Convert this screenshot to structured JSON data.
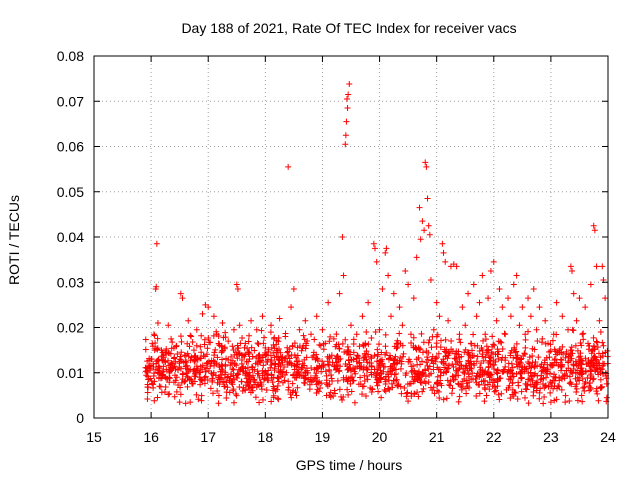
{
  "chart_data": {
    "type": "scatter",
    "title": "Day 188 of 2021, Rate Of TEC Index for receiver vacs",
    "xlabel": "GPS time / hours",
    "ylabel": "ROTI / TECUs",
    "xlim": [
      15,
      24
    ],
    "ylim": [
      0,
      0.08
    ],
    "x_ticks": [
      15,
      16,
      17,
      18,
      19,
      20,
      21,
      22,
      23,
      24
    ],
    "x_tick_labels": [
      "15",
      "16",
      "17",
      "18",
      "19",
      "20",
      "21",
      "22",
      "23",
      "24"
    ],
    "y_ticks": [
      0,
      0.01,
      0.02,
      0.03,
      0.04,
      0.05,
      0.06,
      0.07,
      0.08
    ],
    "y_tick_labels": [
      "0",
      "0.01",
      "0.02",
      "0.03",
      "0.04",
      "0.05",
      "0.06",
      "0.07",
      "0.08"
    ],
    "grid": true,
    "marker": "+",
    "marker_color": "#ff0000",
    "series": [
      {
        "name": "ROTI",
        "points": [
          [
            15.95,
            0.0085
          ],
          [
            15.97,
            0.0115
          ],
          [
            16.0,
            0.013
          ],
          [
            16.02,
            0.0165
          ],
          [
            16.05,
            0.0185
          ],
          [
            16.08,
            0.0285
          ],
          [
            16.09,
            0.029
          ],
          [
            16.1,
            0.0385
          ],
          [
            16.12,
            0.021
          ],
          [
            16.15,
            0.011
          ],
          [
            16.2,
            0.0145
          ],
          [
            16.25,
            0.0125
          ],
          [
            16.3,
            0.0205
          ],
          [
            16.35,
            0.0175
          ],
          [
            16.4,
            0.0155
          ],
          [
            16.45,
            0.009
          ],
          [
            16.5,
            0.0035
          ],
          [
            16.52,
            0.0275
          ],
          [
            16.55,
            0.0265
          ],
          [
            16.6,
            0.0125
          ],
          [
            16.65,
            0.0215
          ],
          [
            16.7,
            0.018
          ],
          [
            16.75,
            0.015
          ],
          [
            16.8,
            0.0195
          ],
          [
            16.85,
            0.009
          ],
          [
            16.9,
            0.023
          ],
          [
            16.95,
            0.025
          ],
          [
            17.0,
            0.0245
          ],
          [
            17.05,
            0.012
          ],
          [
            17.1,
            0.0225
          ],
          [
            17.15,
            0.0185
          ],
          [
            17.2,
            0.0075
          ],
          [
            17.25,
            0.021
          ],
          [
            17.3,
            0.0115
          ],
          [
            17.35,
            0.017
          ],
          [
            17.4,
            0.0135
          ],
          [
            17.45,
            0.0195
          ],
          [
            17.5,
            0.0295
          ],
          [
            17.52,
            0.0285
          ],
          [
            17.55,
            0.0205
          ],
          [
            17.6,
            0.011
          ],
          [
            17.65,
            0.0165
          ],
          [
            17.7,
            0.0145
          ],
          [
            17.75,
            0.0215
          ],
          [
            17.8,
            0.0085
          ],
          [
            17.85,
            0.0195
          ],
          [
            17.9,
            0.0125
          ],
          [
            17.95,
            0.0225
          ],
          [
            18.0,
            0.0155
          ],
          [
            18.05,
            0.0105
          ],
          [
            18.1,
            0.0205
          ],
          [
            18.15,
            0.0175
          ],
          [
            18.2,
            0.0135
          ],
          [
            18.25,
            0.022
          ],
          [
            18.3,
            0.0095
          ],
          [
            18.35,
            0.018
          ],
          [
            18.4,
            0.0555
          ],
          [
            18.45,
            0.0245
          ],
          [
            18.5,
            0.0285
          ],
          [
            18.55,
            0.0125
          ],
          [
            18.6,
            0.0195
          ],
          [
            18.65,
            0.0155
          ],
          [
            18.7,
            0.0215
          ],
          [
            18.75,
            0.0085
          ],
          [
            18.8,
            0.0185
          ],
          [
            18.85,
            0.0145
          ],
          [
            18.9,
            0.0225
          ],
          [
            18.95,
            0.0115
          ],
          [
            19.0,
            0.0195
          ],
          [
            19.05,
            0.0165
          ],
          [
            19.1,
            0.0255
          ],
          [
            19.15,
            0.0095
          ],
          [
            19.2,
            0.0175
          ],
          [
            19.25,
            0.0135
          ],
          [
            19.3,
            0.0275
          ],
          [
            19.35,
            0.04
          ],
          [
            19.37,
            0.0315
          ],
          [
            19.4,
            0.0605
          ],
          [
            19.41,
            0.0625
          ],
          [
            19.42,
            0.0655
          ],
          [
            19.43,
            0.0705
          ],
          [
            19.44,
            0.0685
          ],
          [
            19.45,
            0.0715
          ],
          [
            19.47,
            0.0738
          ],
          [
            19.5,
            0.0205
          ],
          [
            19.55,
            0.0145
          ],
          [
            19.6,
            0.0185
          ],
          [
            19.65,
            0.0115
          ],
          [
            19.7,
            0.0225
          ],
          [
            19.75,
            0.0165
          ],
          [
            19.8,
            0.0255
          ],
          [
            19.85,
            0.0135
          ],
          [
            19.9,
            0.0385
          ],
          [
            19.92,
            0.0375
          ],
          [
            19.95,
            0.0345
          ],
          [
            20.0,
            0.0195
          ],
          [
            20.05,
            0.0285
          ],
          [
            20.1,
            0.0365
          ],
          [
            20.12,
            0.0375
          ],
          [
            20.15,
            0.0315
          ],
          [
            20.2,
            0.0225
          ],
          [
            20.25,
            0.0275
          ],
          [
            20.3,
            0.0165
          ],
          [
            20.35,
            0.0245
          ],
          [
            20.4,
            0.0205
          ],
          [
            20.45,
            0.0325
          ],
          [
            20.5,
            0.0295
          ],
          [
            20.55,
            0.0185
          ],
          [
            20.6,
            0.0265
          ],
          [
            20.65,
            0.0355
          ],
          [
            20.7,
            0.0465
          ],
          [
            20.72,
            0.0395
          ],
          [
            20.75,
            0.0435
          ],
          [
            20.78,
            0.0415
          ],
          [
            20.8,
            0.0565
          ],
          [
            20.82,
            0.0555
          ],
          [
            20.84,
            0.0485
          ],
          [
            20.86,
            0.0425
          ],
          [
            20.88,
            0.0405
          ],
          [
            20.9,
            0.0305
          ],
          [
            20.95,
            0.0195
          ],
          [
            21.0,
            0.0255
          ],
          [
            21.05,
            0.0225
          ],
          [
            21.1,
            0.0385
          ],
          [
            21.12,
            0.0365
          ],
          [
            21.15,
            0.0345
          ],
          [
            21.2,
            0.0215
          ],
          [
            21.25,
            0.0335
          ],
          [
            21.3,
            0.034
          ],
          [
            21.35,
            0.0335
          ],
          [
            21.4,
            0.0185
          ],
          [
            21.45,
            0.0245
          ],
          [
            21.5,
            0.0205
          ],
          [
            21.55,
            0.0275
          ],
          [
            21.6,
            0.0165
          ],
          [
            21.65,
            0.0295
          ],
          [
            21.7,
            0.0225
          ],
          [
            21.75,
            0.0255
          ],
          [
            21.8,
            0.0315
          ],
          [
            21.85,
            0.0185
          ],
          [
            21.9,
            0.0265
          ],
          [
            21.95,
            0.0325
          ],
          [
            22.0,
            0.0345
          ],
          [
            22.05,
            0.0215
          ],
          [
            22.1,
            0.0285
          ],
          [
            22.15,
            0.0245
          ],
          [
            22.2,
            0.0185
          ],
          [
            22.25,
            0.0265
          ],
          [
            22.3,
            0.0225
          ],
          [
            22.35,
            0.0295
          ],
          [
            22.4,
            0.0315
          ],
          [
            22.45,
            0.0205
          ],
          [
            22.5,
            0.0245
          ],
          [
            22.55,
            0.0185
          ],
          [
            22.6,
            0.0265
          ],
          [
            22.65,
            0.0225
          ],
          [
            22.7,
            0.0285
          ],
          [
            22.75,
            0.0195
          ],
          [
            22.8,
            0.0245
          ],
          [
            22.85,
            0.0175
          ],
          [
            22.9,
            0.0215
          ],
          [
            22.95,
            0.0165
          ],
          [
            23.0,
            0.0035
          ],
          [
            23.05,
            0.0185
          ],
          [
            23.1,
            0.0255
          ],
          [
            23.15,
            0.0145
          ],
          [
            23.2,
            0.0225
          ],
          [
            23.25,
            0.0035
          ],
          [
            23.3,
            0.0195
          ],
          [
            23.35,
            0.0335
          ],
          [
            23.37,
            0.0325
          ],
          [
            23.4,
            0.0275
          ],
          [
            23.45,
            0.0215
          ],
          [
            23.5,
            0.0265
          ],
          [
            23.55,
            0.0185
          ],
          [
            23.6,
            0.0245
          ],
          [
            23.65,
            0.0165
          ],
          [
            23.7,
            0.0295
          ],
          [
            23.75,
            0.0425
          ],
          [
            23.77,
            0.0415
          ],
          [
            23.8,
            0.0335
          ],
          [
            23.85,
            0.0215
          ],
          [
            23.9,
            0.0335
          ],
          [
            23.92,
            0.0305
          ],
          [
            23.95,
            0.0265
          ],
          [
            23.98,
            0.0045
          ]
        ]
      }
    ],
    "dense_band": {
      "x_start": 15.9,
      "x_end": 24.0,
      "y_min": 0.003,
      "y_max": 0.022,
      "mean": 0.011,
      "spread": 0.005,
      "density_per_hour": 210
    }
  }
}
